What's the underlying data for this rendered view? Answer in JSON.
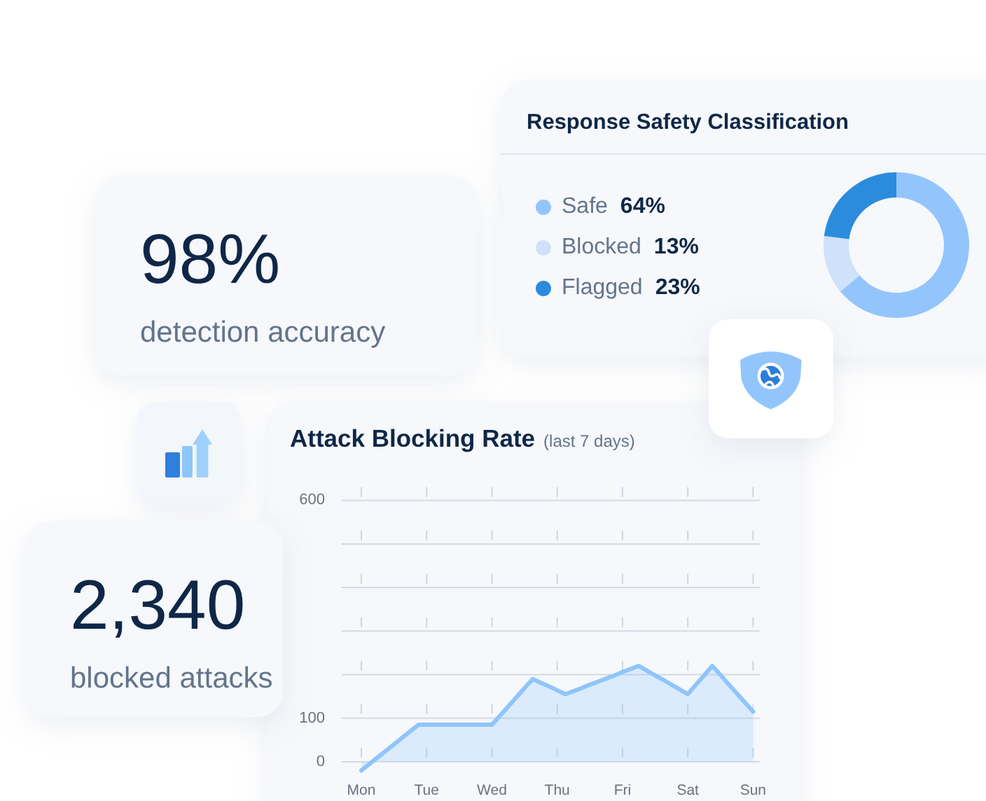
{
  "chart_data": [
    {
      "type": "donut",
      "title": "Response Safety Classification",
      "categories": [
        "Safe",
        "Blocked",
        "Flagged"
      ],
      "values": [
        64,
        13,
        23
      ],
      "value_labels": [
        "64%",
        "13%",
        "23%"
      ],
      "colors": [
        "#93c5fd",
        "#cfe1fb",
        "#2b8bdd"
      ],
      "legend": "left"
    },
    {
      "type": "other",
      "annotations": [
        "98%",
        "detection accuracy"
      ]
    },
    {
      "type": "area",
      "title": "Attack Blocking Rate",
      "subtitle": "(last 7 days)",
      "categories": [
        "Mon",
        null,
        null,
        null,
        null,
        null,
        null,
        null,
        "Tue",
        null,
        null,
        null,
        null,
        null,
        null,
        null,
        "Wed",
        null,
        null,
        null,
        null,
        null,
        null,
        null,
        "Thu",
        null,
        null,
        null,
        null,
        null,
        null,
        null,
        "Fri",
        null,
        null,
        null,
        null,
        null,
        null,
        null,
        "Sat",
        null,
        null,
        null,
        null,
        null,
        null,
        null,
        "Sun"
      ],
      "series": [
        {
          "color": "#8fc5fb",
          "values": [
            -20,
            -5,
            10,
            25,
            40,
            55,
            70,
            85,
            85,
            85,
            85,
            85,
            85,
            85,
            85,
            85,
            85,
            106,
            127,
            148,
            169,
            190,
            181,
            173,
            164,
            155,
            162,
            169,
            177,
            184,
            191,
            198,
            206,
            213,
            220,
            209,
            198,
            188,
            177,
            166,
            155,
            177,
            198,
            220,
            199,
            178,
            157,
            136,
            115
          ]
        }
      ],
      "ylim": [
        -40,
        640
      ],
      "yticks": [
        0,
        100,
        {
          "value": 200,
          "label": null
        },
        {
          "value": 300,
          "label": null
        },
        {
          "value": 400,
          "label": null
        },
        {
          "value": 500,
          "label": null
        },
        600
      ],
      "grid": true
    },
    {
      "type": "other",
      "annotations": [
        "2,340",
        "blocked attacks"
      ]
    }
  ]
}
